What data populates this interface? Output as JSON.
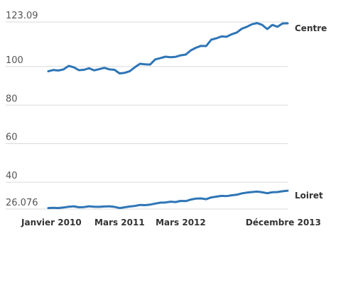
{
  "chart_data": {
    "type": "line",
    "title": "",
    "xlabel": "",
    "ylabel": "",
    "ylim": [
      26.076,
      123.09
    ],
    "grid": true,
    "legend": "inline-right",
    "y_ticks": [
      {
        "value": 123.09,
        "label": "123.09"
      },
      {
        "value": 100,
        "label": "100"
      },
      {
        "value": 80,
        "label": "80"
      },
      {
        "value": 60,
        "label": "60"
      },
      {
        "value": 40,
        "label": "40"
      },
      {
        "value": 26.076,
        "label": "26.076"
      }
    ],
    "x_ticks": [
      {
        "index": 0,
        "label": "Janvier 2010"
      },
      {
        "index": 14,
        "label": "Mars 2011"
      },
      {
        "index": 26,
        "label": "Mars 2012"
      },
      {
        "index": 47,
        "label": "Décembre 2013"
      }
    ],
    "x": [
      "2010-01",
      "2010-02",
      "2010-03",
      "2010-04",
      "2010-05",
      "2010-06",
      "2010-07",
      "2010-08",
      "2010-09",
      "2010-10",
      "2010-11",
      "2010-12",
      "2011-01",
      "2011-02",
      "2011-03",
      "2011-04",
      "2011-05",
      "2011-06",
      "2011-07",
      "2011-08",
      "2011-09",
      "2011-10",
      "2011-11",
      "2011-12",
      "2012-01",
      "2012-02",
      "2012-03",
      "2012-04",
      "2012-05",
      "2012-06",
      "2012-07",
      "2012-08",
      "2012-09",
      "2012-10",
      "2012-11",
      "2012-12",
      "2013-01",
      "2013-02",
      "2013-03",
      "2013-04",
      "2013-05",
      "2013-06",
      "2013-07",
      "2013-08",
      "2013-09",
      "2013-10",
      "2013-11",
      "2013-12"
    ],
    "series": [
      {
        "name": "Centre",
        "color": "#2e75b6",
        "values": [
          97.5,
          98.2,
          97.9,
          98.5,
          100.3,
          99.6,
          98.1,
          98.3,
          99.1,
          98.0,
          98.6,
          99.3,
          98.5,
          98.3,
          96.4,
          96.7,
          97.6,
          99.6,
          101.4,
          101.1,
          101.0,
          103.7,
          104.3,
          105.1,
          104.8,
          105.0,
          105.8,
          106.2,
          108.4,
          109.7,
          110.7,
          110.6,
          113.9,
          114.6,
          115.6,
          115.4,
          116.7,
          117.6,
          119.6,
          120.6,
          121.9,
          122.5,
          121.6,
          119.4,
          121.6,
          120.6,
          122.3,
          122.4
        ]
      },
      {
        "name": "Loiret",
        "color": "#2e75b6",
        "values": [
          26.6,
          26.7,
          26.6,
          26.9,
          27.3,
          27.5,
          27.0,
          27.1,
          27.5,
          27.3,
          27.2,
          27.4,
          27.5,
          27.2,
          26.6,
          27.0,
          27.4,
          27.7,
          28.2,
          28.1,
          28.4,
          28.9,
          29.4,
          29.5,
          29.9,
          29.7,
          30.3,
          30.2,
          31.0,
          31.5,
          31.6,
          31.2,
          32.1,
          32.5,
          32.9,
          32.8,
          33.2,
          33.5,
          34.2,
          34.6,
          34.9,
          35.1,
          34.8,
          34.3,
          34.8,
          34.9,
          35.3,
          35.6
        ]
      }
    ]
  }
}
